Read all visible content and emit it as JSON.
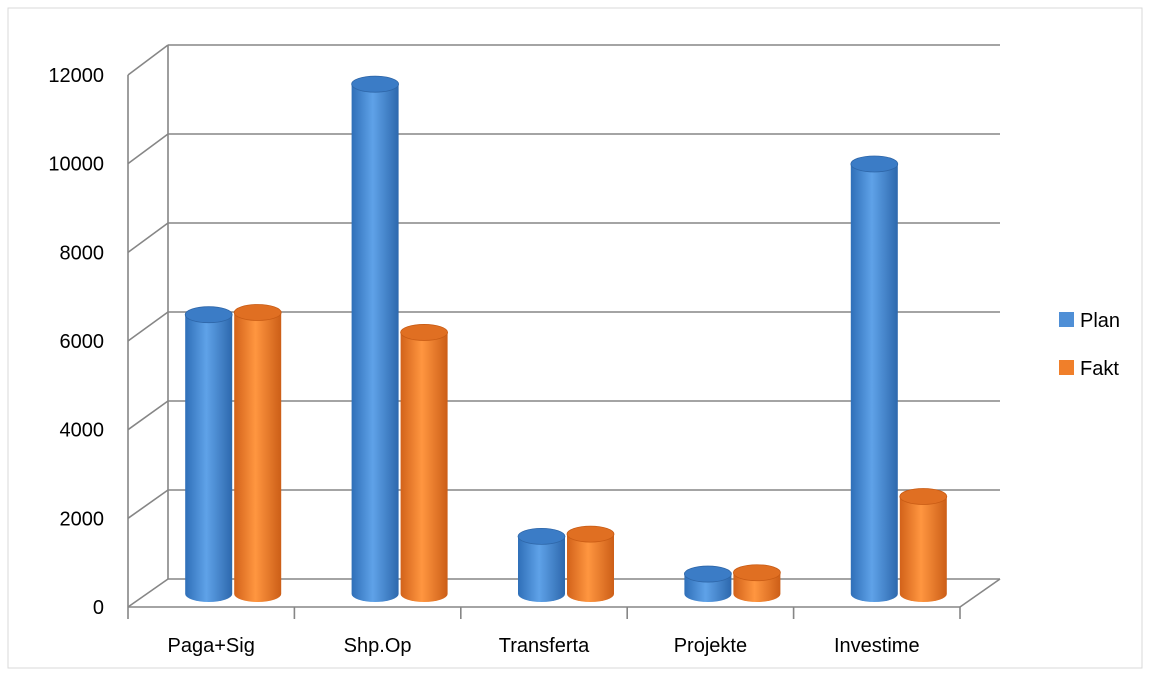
{
  "chart_data": {
    "type": "bar",
    "style": "3d-cylinder",
    "categories": [
      "Paga+Sig",
      "Shp.Op",
      "Transferta",
      "Projekte",
      "Investime"
    ],
    "series": [
      {
        "name": "Plan",
        "values": [
          6300,
          11500,
          1300,
          450,
          9700
        ],
        "color": "#4f8fd6"
      },
      {
        "name": "Fakt",
        "values": [
          6350,
          5900,
          1350,
          480,
          2200
        ],
        "color": "#f07f2a"
      }
    ],
    "ylim": [
      0,
      12000
    ],
    "yticks": [
      0,
      2000,
      4000,
      6000,
      8000,
      10000,
      12000
    ],
    "grid": true,
    "legend_position": "right"
  }
}
